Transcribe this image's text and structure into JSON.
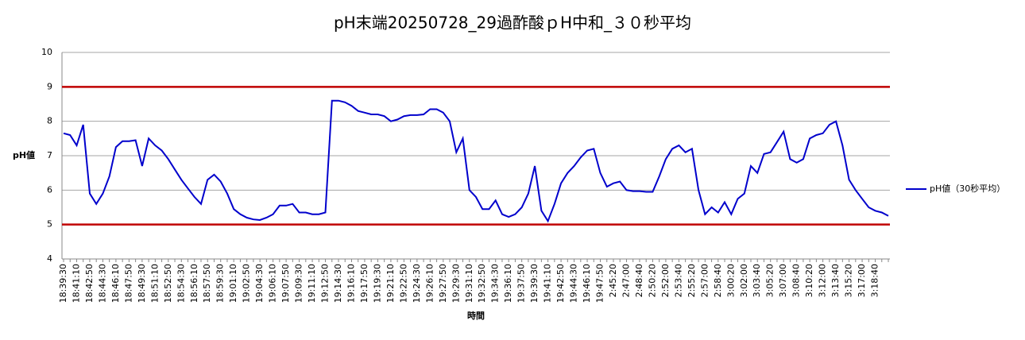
{
  "chart_data": {
    "type": "line",
    "title": "pH末端20250728_29過酢酸ｐH中和_３０秒平均",
    "x_label": "時間",
    "y_label": "pH値",
    "categories": [
      "18:39:30",
      null,
      "18:41:10",
      null,
      "18:42:50",
      null,
      "18:44:30",
      null,
      "18:46:10",
      null,
      "18:47:50",
      null,
      "18:49:30",
      null,
      "18:51:10",
      null,
      "18:52:50",
      null,
      "18:54:30",
      null,
      "18:56:10",
      null,
      "18:57:50",
      null,
      "18:59:30",
      null,
      "19:01:10",
      null,
      "19:02:50",
      null,
      "19:04:30",
      null,
      "19:06:10",
      null,
      "19:07:50",
      null,
      "19:09:30",
      null,
      "19:11:10",
      null,
      "19:12:50",
      null,
      "19:14:30",
      null,
      "19:16:10",
      null,
      "19:17:50",
      null,
      "19:19:30",
      null,
      "19:21:10",
      null,
      "19:22:50",
      null,
      "19:24:30",
      null,
      "19:26:10",
      null,
      "19:27:50",
      null,
      "19:29:30",
      null,
      "19:31:10",
      null,
      "19:32:50",
      null,
      "19:34:30",
      null,
      "19:36:10",
      null,
      "19:37:50",
      null,
      "19:39:30",
      null,
      "19:41:10",
      null,
      "19:42:50",
      null,
      "19:44:30",
      null,
      "19:46:10",
      null,
      "19:47:50",
      null,
      "2:45:20",
      null,
      "2:47:00",
      null,
      "2:48:40",
      null,
      "2:50:20",
      null,
      "2:52:00",
      null,
      "2:53:40",
      null,
      "2:55:20",
      null,
      "2:57:00",
      null,
      "2:58:40",
      null,
      "3:00:20",
      null,
      "3:02:00",
      null,
      "3:03:40",
      null,
      "3:05:20",
      null,
      "3:07:00",
      null,
      "3:08:40",
      null,
      "3:10:20",
      null,
      "3:12:00",
      null,
      "3:13:40",
      null,
      "3:15:20",
      null,
      "3:17:00",
      null,
      "3:18:40",
      null,
      null
    ],
    "series": [
      {
        "name": "pH値（30秒平均）",
        "color": "#0000cc",
        "values": [
          7.65,
          7.6,
          7.3,
          7.9,
          5.9,
          5.6,
          5.9,
          6.4,
          7.25,
          7.42,
          7.42,
          7.45,
          6.7,
          7.5,
          7.3,
          7.15,
          6.9,
          6.6,
          6.3,
          6.05,
          5.8,
          5.6,
          6.3,
          6.45,
          6.25,
          5.9,
          5.45,
          5.3,
          5.2,
          5.15,
          5.13,
          5.2,
          5.3,
          5.55,
          5.55,
          5.6,
          5.35,
          5.35,
          5.3,
          5.3,
          5.35,
          8.6,
          8.6,
          8.55,
          8.45,
          8.3,
          8.25,
          8.2,
          8.2,
          8.15,
          8.0,
          8.05,
          8.15,
          8.18,
          8.18,
          8.2,
          8.35,
          8.35,
          8.25,
          8.0,
          7.1,
          7.5,
          6.0,
          5.8,
          5.45,
          5.45,
          5.7,
          5.3,
          5.22,
          5.3,
          5.5,
          5.9,
          6.7,
          5.4,
          5.1,
          5.6,
          6.2,
          6.5,
          6.7,
          6.95,
          7.15,
          7.2,
          6.5,
          6.1,
          6.2,
          6.25,
          6.0,
          5.97,
          5.97,
          5.95,
          5.95,
          6.4,
          6.9,
          7.2,
          7.3,
          7.1,
          7.2,
          6.0,
          5.3,
          5.5,
          5.35,
          5.65,
          5.3,
          5.75,
          5.9,
          6.7,
          6.5,
          7.05,
          7.1,
          7.4,
          7.7,
          6.9,
          6.8,
          6.9,
          7.5,
          7.6,
          7.65,
          7.9,
          8.0,
          7.3,
          6.3,
          6.0,
          5.75,
          5.5,
          5.4,
          5.35,
          5.25
        ]
      }
    ],
    "reference_lines": [
      5,
      9
    ],
    "reference_color": "#c00000",
    "ylim": [
      4,
      10
    ],
    "yticks": [
      4,
      5,
      6,
      7,
      8,
      9,
      10
    ],
    "grid": true,
    "legend": "right"
  }
}
